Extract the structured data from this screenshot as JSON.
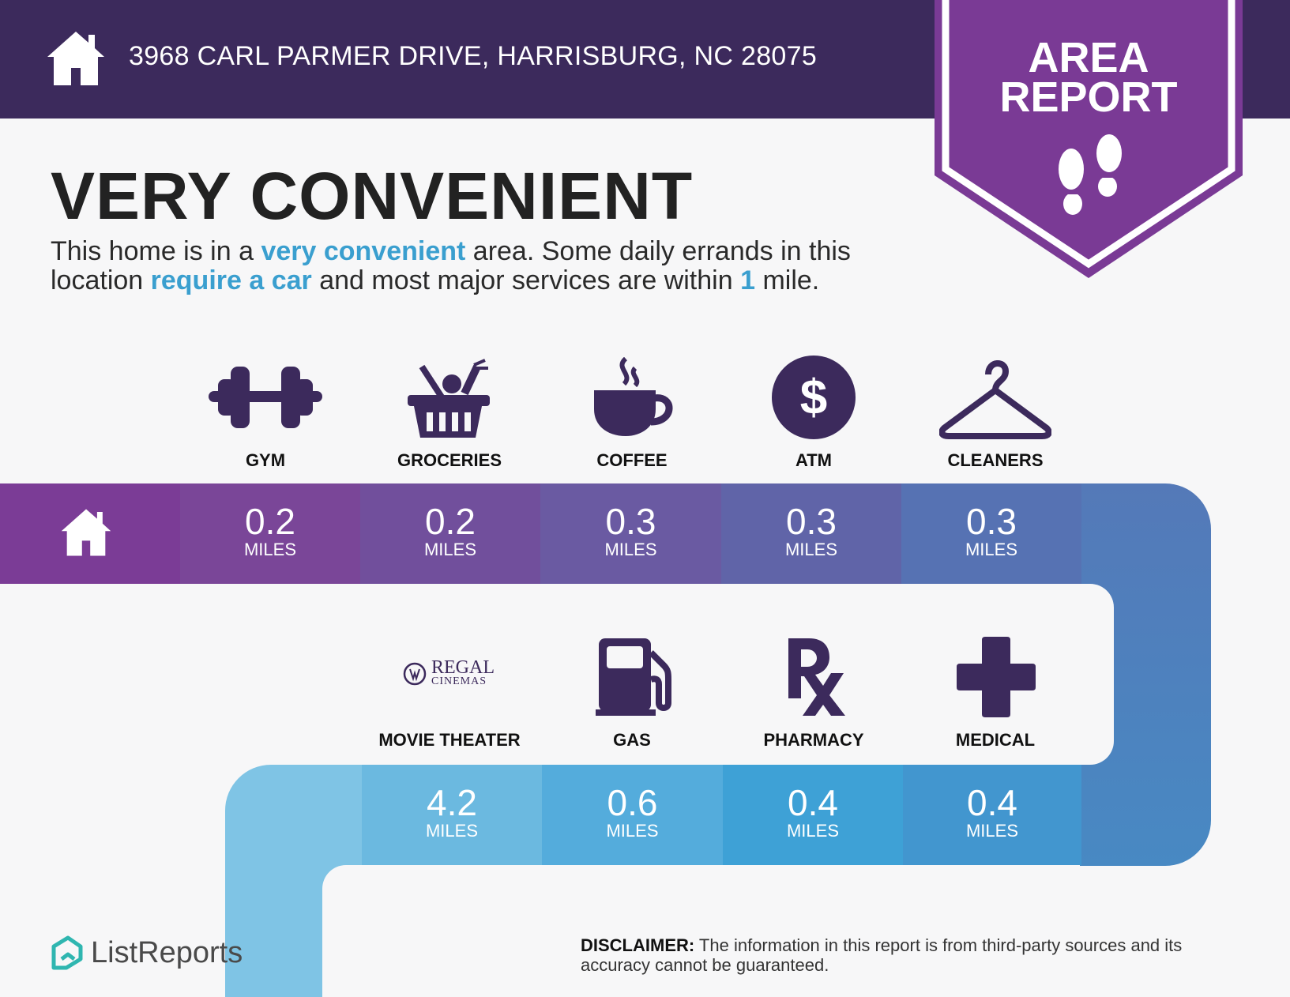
{
  "header": {
    "address": "3968 CARL PARMER DRIVE, HARRISBURG, NC 28075",
    "home_icon": "house-icon"
  },
  "badge": {
    "line1": "AREA",
    "line2": "REPORT",
    "icon": "footprints-icon"
  },
  "title": "VERY CONVENIENT",
  "description": {
    "p1": "This home is in a ",
    "h1": "very convenient",
    "p2": " area. Some daily errands in this location ",
    "h2": "require a car",
    "p3": " and most major services are within ",
    "h3": "1",
    "p4": " mile."
  },
  "row1": [
    {
      "label": "GYM",
      "icon": "dumbbell-icon",
      "value": "0.2",
      "unit": "MILES"
    },
    {
      "label": "GROCERIES",
      "icon": "grocery-basket-icon",
      "value": "0.2",
      "unit": "MILES"
    },
    {
      "label": "COFFEE",
      "icon": "coffee-cup-icon",
      "value": "0.3",
      "unit": "MILES"
    },
    {
      "label": "ATM",
      "icon": "dollar-icon",
      "value": "0.3",
      "unit": "MILES"
    },
    {
      "label": "CLEANERS",
      "icon": "hanger-icon",
      "value": "0.3",
      "unit": "MILES"
    }
  ],
  "row2": [
    {
      "label": "MOVIE THEATER",
      "icon": "regal-cinemas-logo",
      "logo_line1": "REGAL",
      "logo_line2": "CINEMAS",
      "value": "4.2",
      "unit": "MILES"
    },
    {
      "label": "GAS",
      "icon": "gas-pump-icon",
      "value": "0.6",
      "unit": "MILES"
    },
    {
      "label": "PHARMACY",
      "icon": "rx-icon",
      "value": "0.4",
      "unit": "MILES"
    },
    {
      "label": "MEDICAL",
      "icon": "medical-cross-icon",
      "value": "0.4",
      "unit": "MILES"
    }
  ],
  "footer": {
    "brand": "ListReports",
    "disclaimer_label": "DISCLAIMER:",
    "disclaimer_text": " The information in this report is from third-party sources and its accuracy cannot be guaranteed."
  },
  "colors": {
    "header": "#3c2a5c",
    "badge": "#7a3a95",
    "icon": "#3c2a5c",
    "highlight": "#3a9fcf"
  }
}
